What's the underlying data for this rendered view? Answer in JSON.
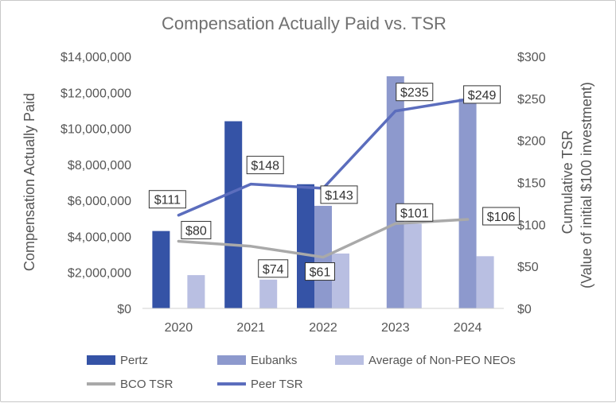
{
  "chart_data": {
    "type": "bar",
    "title": "Compensation Actually Paid vs. TSR",
    "categories": [
      "2020",
      "2021",
      "2022",
      "2023",
      "2024"
    ],
    "ylabel": "Compensation Actually Paid",
    "y2label_line1": "Cumulative TSR",
    "y2label_line2": "(Value of initial $100 investment)",
    "ylim": [
      0,
      14000000
    ],
    "y2lim": [
      0,
      300
    ],
    "y_ticks": [
      0,
      2000000,
      4000000,
      6000000,
      8000000,
      10000000,
      12000000,
      14000000
    ],
    "y_tick_labels": [
      "$0",
      "$2,000,000",
      "$4,000,000",
      "$6,000,000",
      "$8,000,000",
      "$10,000,000",
      "$12,000,000",
      "$14,000,000"
    ],
    "y2_ticks": [
      0,
      50,
      100,
      150,
      200,
      250,
      300
    ],
    "y2_tick_labels": [
      "$0",
      "$50",
      "$100",
      "$150",
      "$200",
      "$250",
      "$300"
    ],
    "series": [
      {
        "name": "Pertz",
        "kind": "bar",
        "color": "#3553a6",
        "values": [
          4300000,
          10400000,
          6900000,
          null,
          null
        ]
      },
      {
        "name": "Eubanks",
        "kind": "bar",
        "color": "#8d99cd",
        "values": [
          null,
          null,
          5700000,
          12900000,
          11650000
        ]
      },
      {
        "name": "Average of Non-PEO NEOs",
        "kind": "bar",
        "color": "#b9bfe2",
        "values": [
          1850000,
          1600000,
          3050000,
          4700000,
          2900000
        ]
      },
      {
        "name": "BCO TSR",
        "kind": "line",
        "axis": "right",
        "color": "#a9a9a9",
        "values": [
          80,
          74,
          61,
          101,
          106
        ],
        "labels": [
          "$80",
          "$74",
          "$61",
          "$101",
          "$106"
        ]
      },
      {
        "name": "Peer TSR",
        "kind": "line",
        "axis": "right",
        "color": "#5b6dbd",
        "values": [
          111,
          148,
          143,
          235,
          249
        ],
        "labels": [
          "$111",
          "$148",
          "$143",
          "$235",
          "$249"
        ]
      }
    ],
    "grid": false,
    "legend_position": "bottom"
  }
}
